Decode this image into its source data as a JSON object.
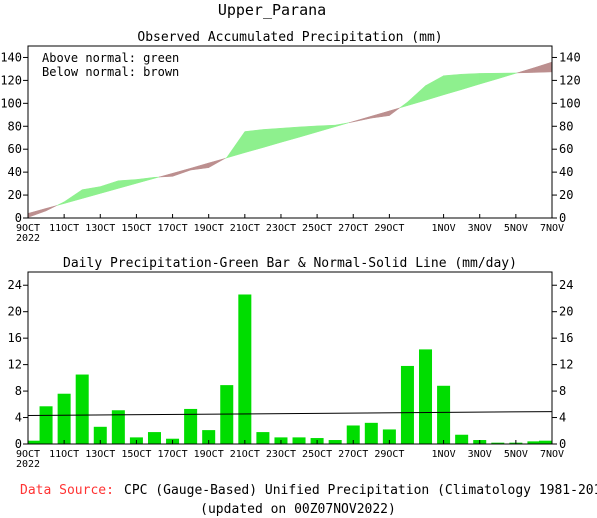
{
  "page": {
    "title": "Upper_Parana",
    "footer_source_label": "Data Source:",
    "footer_source_text": "CPC (Gauge-Based) Unified Precipitation (Climatology 1981-2010)",
    "footer_updated": "(updated on 00Z07NOV2022)"
  },
  "chart_data": [
    {
      "type": "area",
      "title": "Observed Accumulated Precipitation (mm)",
      "annotations": [
        "Above normal: green",
        "Below normal: brown"
      ],
      "colors": {
        "above": "#8ef08e",
        "below": "#bc8f8f"
      },
      "x_tick_labels": [
        "9OCT",
        "11OCT",
        "13OCT",
        "15OCT",
        "17OCT",
        "19OCT",
        "21OCT",
        "23OCT",
        "25OCT",
        "27OCT",
        "29OCT",
        "1NOV",
        "3NOV",
        "5NOV",
        "7NOV"
      ],
      "x_tick_days": [
        0,
        2,
        4,
        6,
        8,
        10,
        12,
        14,
        16,
        18,
        20,
        23,
        25,
        27,
        29
      ],
      "x_year_label": "2022",
      "y_ticks": [
        0,
        20,
        40,
        60,
        80,
        100,
        120,
        140
      ],
      "ylim": [
        0,
        150
      ],
      "xlim": [
        0,
        29
      ],
      "series": [
        {
          "name": "Observed",
          "x": [
            0,
            1,
            2,
            3,
            4,
            5,
            6,
            7,
            8,
            9,
            10,
            11,
            12,
            13,
            14,
            15,
            16,
            17,
            18,
            19,
            20,
            21,
            22,
            23,
            24,
            25,
            26,
            27,
            28,
            29
          ],
          "values": [
            0.5,
            6.2,
            14.1,
            24.7,
            27.4,
            32.5,
            33.6,
            35.5,
            36.3,
            41.8,
            43.9,
            52.8,
            75.4,
            77.2,
            78.3,
            79.4,
            80.3,
            81.0,
            83.8,
            87.1,
            89.3,
            101.1,
            115.4,
            124.1,
            125.4,
            126.1,
            126.3,
            126.5,
            126.9,
            127.4
          ]
        },
        {
          "name": "Normal",
          "x": [
            0,
            1,
            2,
            3,
            4,
            5,
            6,
            7,
            8,
            9,
            10,
            11,
            12,
            13,
            14,
            15,
            16,
            17,
            18,
            19,
            20,
            21,
            22,
            23,
            24,
            25,
            26,
            27,
            28,
            29
          ],
          "values": [
            4.0,
            8.4,
            12.6,
            17.0,
            21.4,
            25.8,
            30.2,
            34.6,
            39.0,
            43.4,
            48.0,
            52.4,
            57.0,
            61.4,
            66.0,
            70.4,
            75.0,
            79.6,
            84.2,
            88.8,
            93.4,
            98.0,
            102.6,
            107.4,
            112.0,
            116.8,
            121.4,
            126.2,
            131.0,
            136.0
          ]
        }
      ]
    },
    {
      "type": "bar",
      "title": "Daily Precipitation-Green Bar & Normal-Solid Line (mm/day)",
      "colors": {
        "bar": "#00dd00",
        "line": "#000000"
      },
      "x_tick_labels": [
        "9OCT",
        "11OCT",
        "13OCT",
        "15OCT",
        "17OCT",
        "19OCT",
        "21OCT",
        "23OCT",
        "25OCT",
        "27OCT",
        "29OCT",
        "1NOV",
        "3NOV",
        "5NOV",
        "7NOV"
      ],
      "x_tick_days": [
        0,
        2,
        4,
        6,
        8,
        10,
        12,
        14,
        16,
        18,
        20,
        23,
        25,
        27,
        29
      ],
      "x_year_label": "2022",
      "y_ticks": [
        0,
        4,
        8,
        12,
        16,
        20,
        24
      ],
      "ylim": [
        0,
        26
      ],
      "xlim": [
        0,
        29
      ],
      "series": [
        {
          "name": "Daily",
          "x": [
            0,
            1,
            2,
            3,
            4,
            5,
            6,
            7,
            8,
            9,
            10,
            11,
            12,
            13,
            14,
            15,
            16,
            17,
            18,
            19,
            20,
            21,
            22,
            23,
            24,
            25,
            26,
            27,
            28,
            29
          ],
          "values": [
            0.5,
            5.7,
            7.6,
            10.5,
            2.6,
            5.1,
            1.0,
            1.8,
            0.8,
            5.3,
            2.1,
            8.9,
            22.6,
            1.8,
            1.0,
            1.0,
            0.9,
            0.6,
            2.8,
            3.2,
            2.2,
            11.8,
            14.3,
            8.8,
            1.4,
            0.6,
            0.2,
            0.2,
            0.4,
            0.5
          ]
        },
        {
          "name": "Normal",
          "x": [
            0,
            29
          ],
          "values": [
            4.3,
            4.9
          ]
        }
      ]
    }
  ]
}
